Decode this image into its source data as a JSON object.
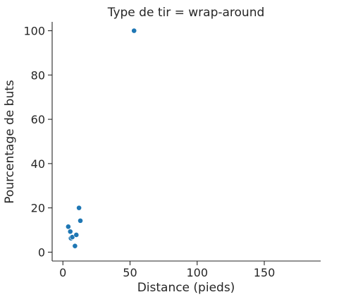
{
  "chart_data": {
    "type": "scatter",
    "title": "Type de tir = wrap-around",
    "xlabel": "Distance (pieds)",
    "ylabel": "Pourcentage de buts",
    "xlim": [
      -8,
      192
    ],
    "ylim": [
      -4,
      104
    ],
    "xticks": [
      0,
      50,
      100,
      150
    ],
    "yticks": [
      0,
      20,
      40,
      60,
      80,
      100
    ],
    "grid": false,
    "point_color": "#1f77b4",
    "series": [
      {
        "points": [
          {
            "x": 4,
            "y": 11.5
          },
          {
            "x": 5.5,
            "y": 9.3
          },
          {
            "x": 6,
            "y": 6.3
          },
          {
            "x": 7,
            "y": 6.8
          },
          {
            "x": 9,
            "y": 2.8
          },
          {
            "x": 10,
            "y": 7.8
          },
          {
            "x": 12,
            "y": 20
          },
          {
            "x": 13,
            "y": 14.2
          },
          {
            "x": 53,
            "y": 100
          }
        ]
      }
    ]
  }
}
